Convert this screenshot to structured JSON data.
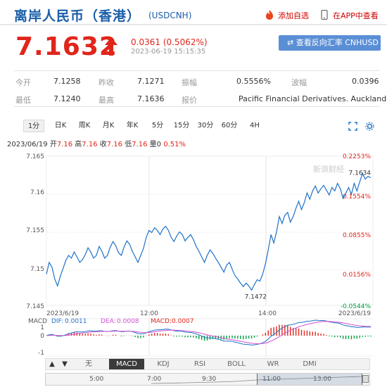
{
  "header": {
    "title": "离岸人民币（香港）",
    "code": "(USDCNH)",
    "add_fav": "添加自选",
    "open_app": "在APP中查看"
  },
  "quote": {
    "price": "7.1632",
    "change": "0.0361 (0.5062%)",
    "time": "2023-06-19 15:15:35",
    "switch_label": "查看反向汇率 CNHUSD"
  },
  "info": {
    "open_label": "今开",
    "open": "7.1258",
    "prev_label": "昨收",
    "prev": "7.1271",
    "amp_label": "振幅",
    "amp": "0.5556%",
    "wave_label": "波幅",
    "wave": "0.0396",
    "low_label": "最低",
    "low": "7.1240",
    "high_label": "最高",
    "high": "7.1636",
    "quote_label": "报价",
    "quote_src": "Pacific Financial Derivatives. Auckland"
  },
  "tabs": [
    "1分",
    "日K",
    "周K",
    "月K",
    "年K",
    "5分",
    "15分",
    "30分",
    "60分",
    "4H"
  ],
  "chart_head": {
    "date": "2023/06/19",
    "open_l": "开",
    "open_v": "7.16",
    "high_l": "高",
    "high_v": "7.16",
    "low_l": "收",
    "low_v": "7.16",
    "close_l": "低",
    "close_v": "7.16",
    "vol_l": "量",
    "vol_v": "0",
    "pct": "0.51%"
  },
  "watermark": "新浪财经",
  "chart_data": {
    "type": "line",
    "y_ticks": [
      "7.165",
      "7.16",
      "7.155",
      "7.15",
      "7.145"
    ],
    "y_values": [
      7.165,
      7.16,
      7.155,
      7.15,
      7.145
    ],
    "pct_ticks": [
      "0.2253%",
      "0.1554%",
      "0.0855%",
      "0.0156%",
      "-0.0544%"
    ],
    "x_labels": [
      "2023/6/19",
      "12:00",
      "14:00",
      "2023/6/19"
    ],
    "ylim": [
      7.145,
      7.1665
    ],
    "min_label": "7.1472",
    "last_label": "7.1634",
    "series": [
      {
        "values": [
          7.1495,
          7.1512,
          7.1505,
          7.1488,
          7.1478,
          7.1492,
          7.1503,
          7.1515,
          7.1522,
          7.1518,
          7.1527,
          7.152,
          7.1512,
          7.1516,
          7.1523,
          7.1533,
          7.1527,
          7.1518,
          7.1522,
          7.1535,
          7.1528,
          7.1518,
          7.1522,
          7.1534,
          7.1542,
          7.1536,
          7.1526,
          7.1522,
          7.1534,
          7.1543,
          7.1538,
          7.1528,
          7.152,
          7.1512,
          7.1522,
          7.1532,
          7.1548,
          7.1558,
          7.1555,
          7.1562,
          7.1558,
          7.1552,
          7.156,
          7.1564,
          7.1558,
          7.1548,
          7.1542,
          7.155,
          7.1556,
          7.1552,
          7.1543,
          7.1548,
          7.1552,
          7.1545,
          7.1535,
          7.1528,
          7.152,
          7.1512,
          7.1522,
          7.153,
          7.1525,
          7.1518,
          7.1512,
          7.1505,
          7.1498,
          7.1508,
          7.1512,
          7.1502,
          7.1493,
          7.1488,
          7.1482,
          7.1477,
          7.1482,
          7.1478,
          7.1472,
          7.148,
          7.1487,
          7.1485,
          7.1495,
          7.151,
          7.153,
          7.1552,
          7.154,
          7.1556,
          7.1578,
          7.1568,
          7.158,
          7.1584,
          7.157,
          7.1578,
          7.159,
          7.16,
          7.1588,
          7.1598,
          7.1612,
          7.1603,
          7.1615,
          7.1622,
          7.1612,
          7.1618,
          7.1623,
          7.1616,
          7.1609,
          7.162,
          7.1615,
          7.1626,
          7.1618,
          7.1604,
          7.1612,
          7.162,
          7.161,
          7.1626,
          7.1615,
          7.1628,
          7.164,
          7.1632,
          7.1636,
          7.1634
        ]
      }
    ],
    "macd": {
      "label": "MACD",
      "dif_label": "DIF:",
      "dif": "0.0011",
      "dea_label": "DEA:",
      "dea": "0.0008",
      "macd_label": "MACD:",
      "macd_v": "0.0007",
      "ticks": [
        "1",
        "0",
        "-1"
      ]
    }
  },
  "indicators": [
    "无",
    "MACD",
    "KDJ",
    "RSI",
    "BOLL",
    "WR",
    "DMI"
  ],
  "timebar": [
    "5:00",
    "7:00",
    "9:30",
    "11:00",
    "13:00"
  ],
  "colors": {
    "up": "#e1251b",
    "blue": "#1a5ea8",
    "line": "#1e72c8"
  }
}
